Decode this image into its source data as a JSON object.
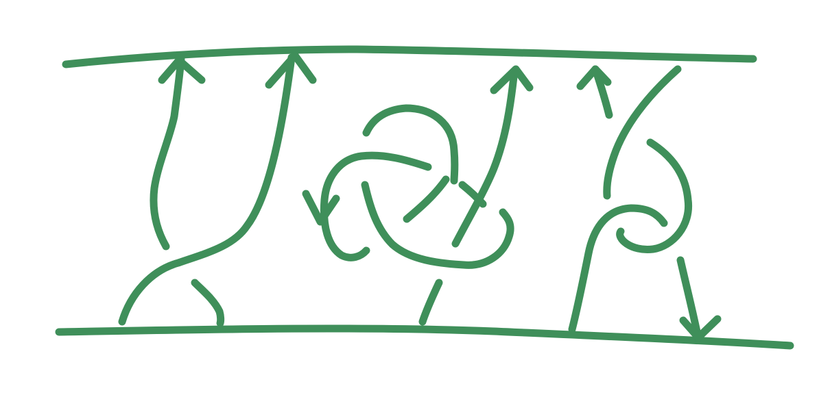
{
  "diagram": {
    "kind": "hand-drawn tangle diagram",
    "stroke_color": "#3f8f5a",
    "background_color": "#ffffff",
    "boundaries": [
      "top-line",
      "bottom-line"
    ],
    "strands": [
      "left-braid",
      "central-knot",
      "right-loop"
    ],
    "arrow_icons": [
      "arrow-up-icon",
      "arrow-down-icon",
      "arrow-left-icon"
    ]
  }
}
